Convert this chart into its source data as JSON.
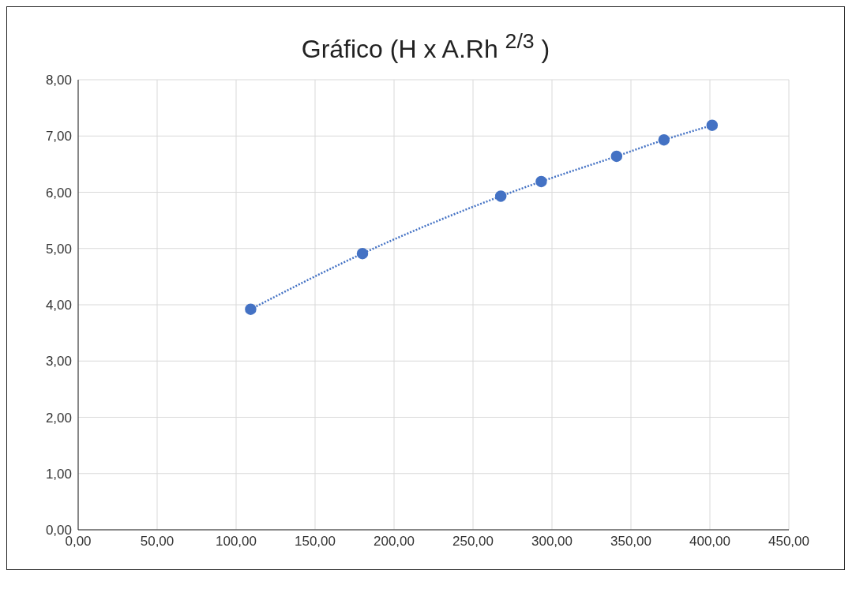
{
  "chart_data": {
    "type": "line",
    "title": "Gráfico (H x A.Rh $^{2/3}$ )",
    "x": [
      109.2,
      180.0,
      267.6,
      293.2,
      340.9,
      370.9,
      401.4
    ],
    "series": [
      {
        "color": "#4472c4",
        "values": [
          3.92,
          4.91,
          5.93,
          6.19,
          6.64,
          6.93,
          7.19
        ]
      }
    ],
    "xlim": [
      0,
      450
    ],
    "xticks": [
      {
        "value": 0,
        "label": "0,00"
      },
      {
        "value": 50,
        "label": "50,00"
      },
      {
        "value": 100,
        "label": "100,00"
      },
      {
        "value": 150,
        "label": "150,00"
      },
      {
        "value": 200,
        "label": "200,00"
      },
      {
        "value": 250,
        "label": "250,00"
      },
      {
        "value": 300,
        "label": "300,00"
      },
      {
        "value": 350,
        "label": "350,00"
      },
      {
        "value": 400,
        "label": "400,00"
      },
      {
        "value": 450,
        "label": "450,00"
      }
    ],
    "ylim": [
      0,
      8
    ],
    "yticks": [
      {
        "value": 0,
        "label": "0,00"
      },
      {
        "value": 1,
        "label": "1,00"
      },
      {
        "value": 2,
        "label": "2,00"
      },
      {
        "value": 3,
        "label": "3,00"
      },
      {
        "value": 4,
        "label": "4,00"
      },
      {
        "value": 5,
        "label": "5,00"
      },
      {
        "value": 6,
        "label": "6,00"
      },
      {
        "value": 7,
        "label": "7,00"
      },
      {
        "value": 8,
        "label": "8,00"
      }
    ],
    "grid": true,
    "marker": "circle",
    "line_style": "dotted"
  }
}
